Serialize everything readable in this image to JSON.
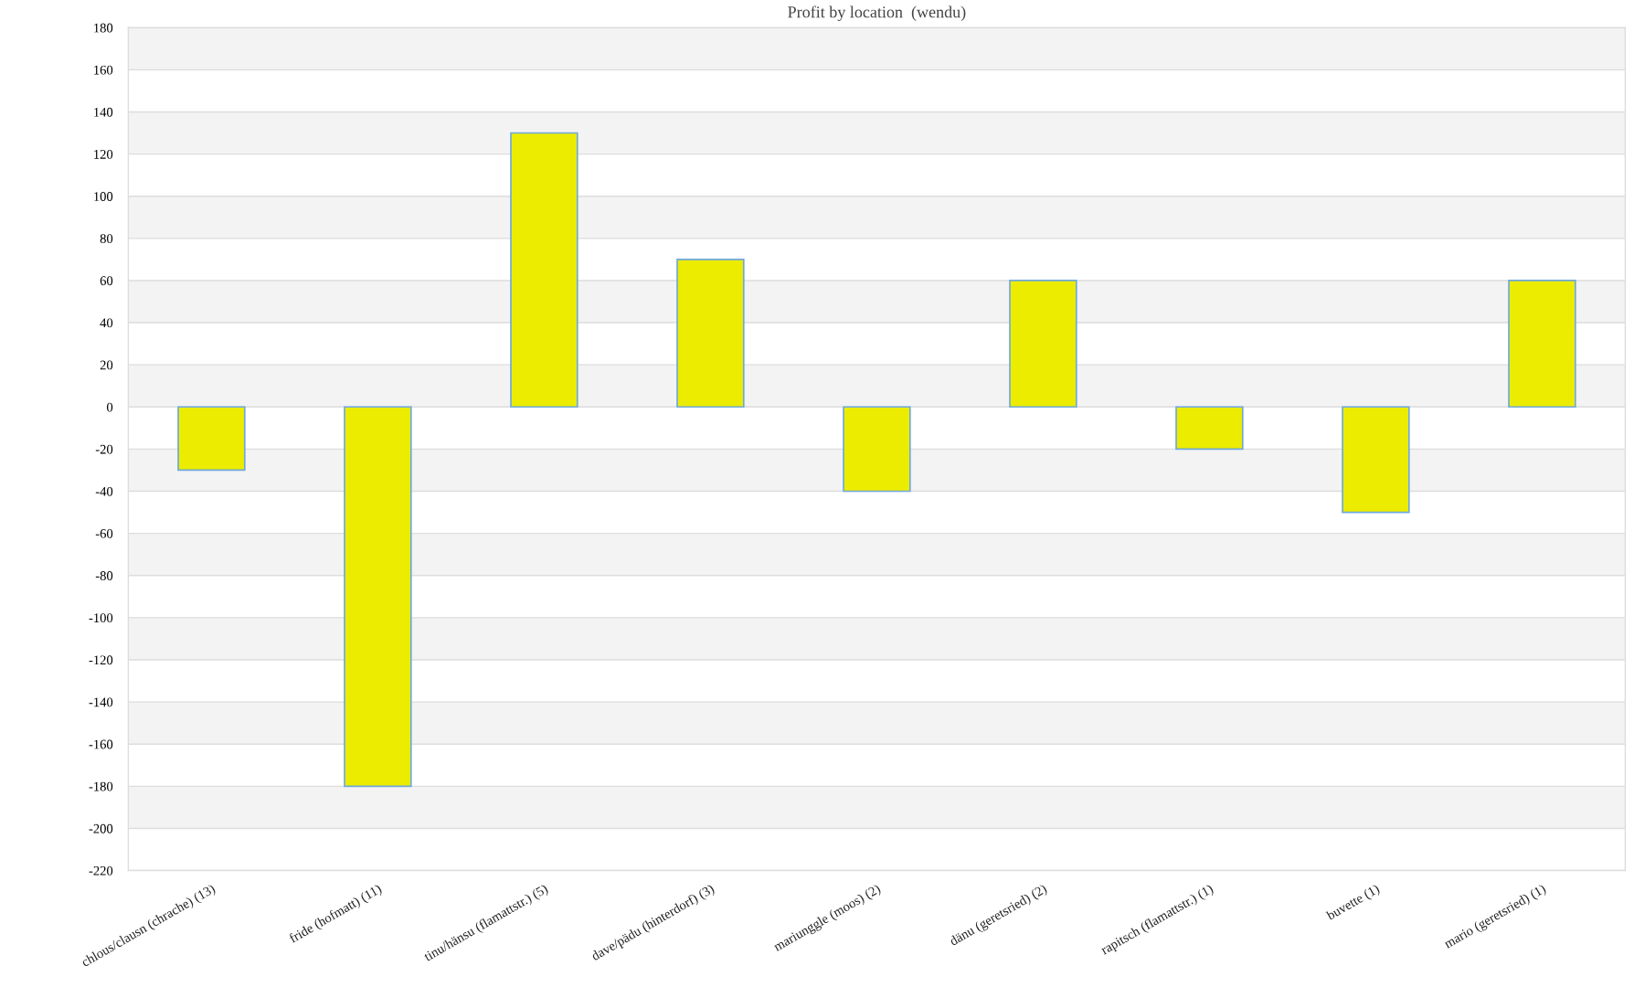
{
  "chart_data": {
    "type": "bar",
    "title": "Profit by location  (wendu)",
    "categories": [
      "chlous/clausn (chrache) (13)",
      "fride (hofmatt) (11)",
      "tinu/hänsu (flamattstr.) (5)",
      "dave/pädu (hinterdorf) (3)",
      "mariunggle (moos) (2)",
      "dänu (geretsried) (2)",
      "rapitsch (flamattstr.) (1)",
      "buvette (1)",
      "mario (geretsried) (1)"
    ],
    "values": [
      -30,
      -180,
      130,
      70,
      -40,
      60,
      -20,
      -50,
      60
    ],
    "color": "#ecec00",
    "ylim": [
      -220,
      180
    ],
    "yticks": [
      -220,
      -200,
      -180,
      -160,
      -140,
      -120,
      -100,
      -80,
      -60,
      -40,
      -20,
      0,
      20,
      40,
      60,
      80,
      100,
      120,
      140,
      160,
      180
    ],
    "grid": "y",
    "bands": [
      {
        "axis": "y",
        "from": 160,
        "to": 180,
        "color": "#f3f3f3"
      },
      {
        "axis": "y",
        "from": 120,
        "to": 140,
        "color": "#f3f3f3"
      },
      {
        "axis": "y",
        "from": 80,
        "to": 100,
        "color": "#f3f3f3"
      },
      {
        "axis": "y",
        "from": 40,
        "to": 60,
        "color": "#f3f3f3"
      },
      {
        "axis": "y",
        "from": 0,
        "to": 20,
        "color": "#f3f3f3"
      },
      {
        "axis": "y",
        "from": -40,
        "to": -20,
        "color": "#f3f3f3"
      },
      {
        "axis": "y",
        "from": -80,
        "to": -60,
        "color": "#f3f3f3"
      },
      {
        "axis": "y",
        "from": -120,
        "to": -100,
        "color": "#f3f3f3"
      },
      {
        "axis": "y",
        "from": -160,
        "to": -140,
        "color": "#f3f3f3"
      },
      {
        "axis": "y",
        "from": -200,
        "to": -180,
        "color": "#f3f3f3"
      }
    ]
  }
}
